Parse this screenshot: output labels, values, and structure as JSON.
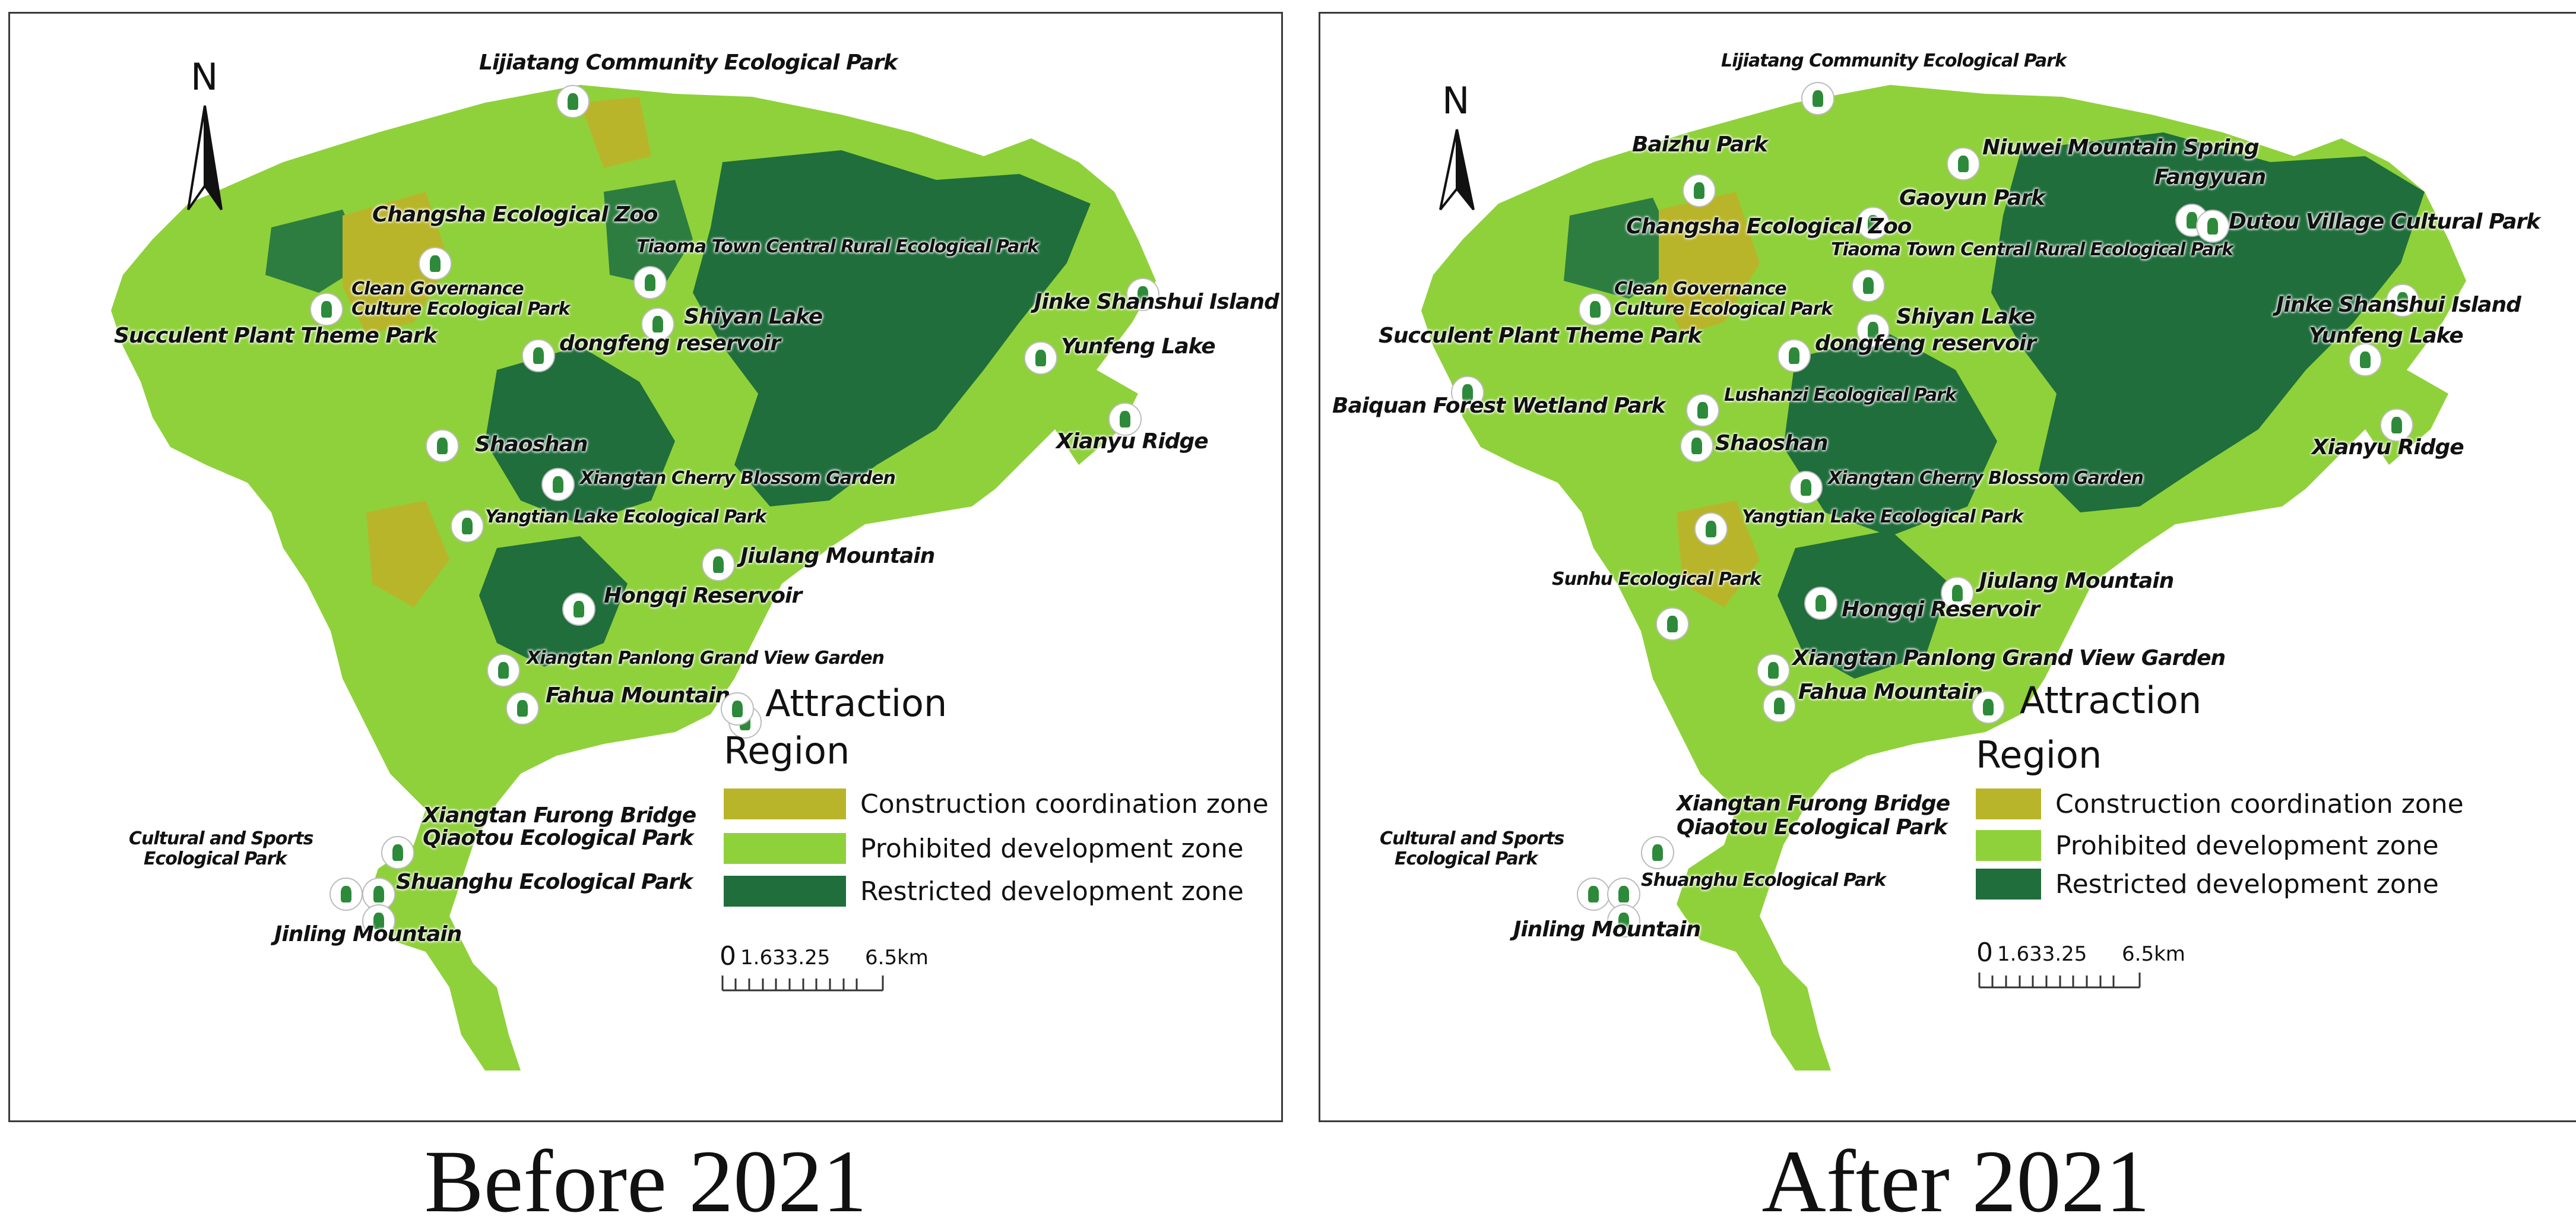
{
  "captions": {
    "before": "Before 2021",
    "after": "After 2021"
  },
  "legend": {
    "attraction": "Attraction",
    "region": "Region",
    "zones": [
      {
        "label": "Construction coordination zone",
        "color": "#b9b52a"
      },
      {
        "label": "Prohibited development zone",
        "color": "#8fd13a"
      },
      {
        "label": "Restricted development zone",
        "color": "#1f6e3c"
      }
    ],
    "scale": {
      "zero": "0",
      "mid": "1.633.25",
      "end": "6.5km"
    },
    "north": "N"
  },
  "colors": {
    "water_dark": "#1f6e3c",
    "green": "#8fd13a",
    "yellow_zone": "#b9b52a",
    "marker_icon": "#2d8a3a"
  },
  "before": {
    "labels": [
      "Lijiatang Community Ecological Park",
      "Changsha Ecological Zoo",
      "Tiaoma Town Central Rural Ecological Park",
      "Clean Governance",
      "Culture Ecological Park",
      "Succulent Plant Theme Park",
      "Shiyan Lake",
      "dongfeng reservoir",
      "Jinke Shanshui Island",
      "Yunfeng Lake",
      "Xianyu Ridge",
      "Shaoshan",
      "Xiangtan Cherry Blossom Garden",
      "Yangtian Lake Ecological Park",
      "Jiulang Mountain",
      "Hongqi Reservoir",
      "Xiangtan Panlong Grand View Garden",
      "Fahua Mountain",
      "Xiangtan Furong Bridge",
      "Qiaotou Ecological Park",
      "Cultural and Sports",
      "Ecological Park",
      "Shuanghu Ecological Park",
      "Jinling Mountain"
    ]
  },
  "after": {
    "labels": [
      "Lijiatang Community Ecological Park",
      "Baizhu Park",
      "Niuwei Mountain Spring",
      "Fangyuan",
      "Gaoyun Park",
      "Dutou Village Cultural Park",
      "Changsha Ecological Zoo",
      "Tiaoma Town Central Rural Ecological Park",
      "Clean Governance",
      "Culture Ecological Park",
      "Succulent Plant Theme Park",
      "Shiyan Lake",
      "dongfeng reservoir",
      "Jinke Shanshui Island",
      "Yunfeng Lake",
      "Baiquan Forest Wetland Park",
      "Lushanzi Ecological Park",
      "Shaoshan",
      "Xianyu Ridge",
      "Xiangtan Cherry Blossom Garden",
      "Yangtian Lake Ecological Park",
      "Sunhu Ecological Park",
      "Jiulang Mountain",
      "Hongqi Reservoir",
      "Xiangtan Panlong Grand View Garden",
      "Fahua Mountain",
      "Xiangtan Furong Bridge",
      "Qiaotou Ecological Park",
      "Cultural and Sports",
      "Ecological Park",
      "Shuanghu Ecological Park",
      "Jinling Mountain"
    ]
  }
}
